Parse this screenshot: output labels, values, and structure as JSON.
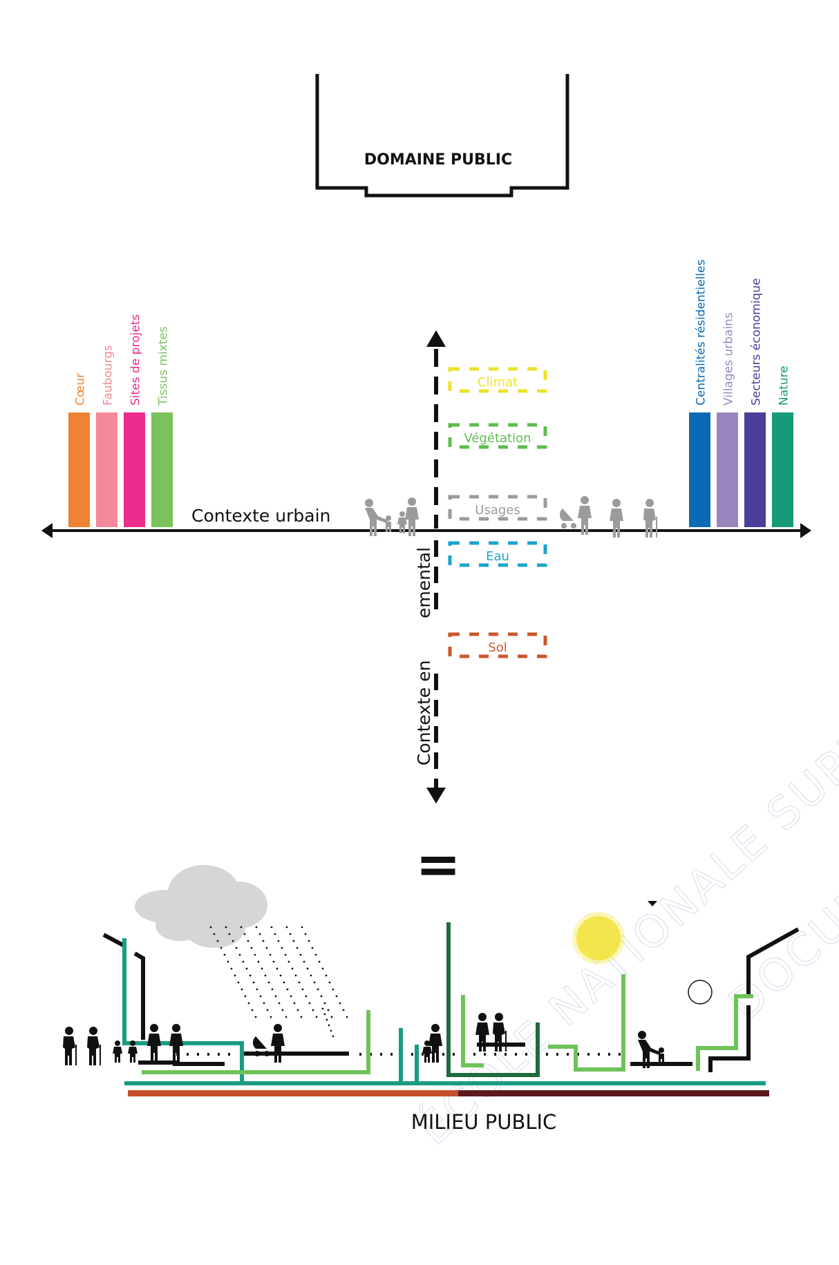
{
  "domaine_public": {
    "label": "DOMAINE PUBLIC"
  },
  "contexte_urbain": {
    "label": "Contexte urbain",
    "left_categories": [
      {
        "label": "Cœur",
        "color": "#EE8433"
      },
      {
        "label": "Faubourgs",
        "color": "#F4899C"
      },
      {
        "label": "Sites de projets",
        "color": "#EC2C8C"
      },
      {
        "label": "Tissus mixtes",
        "color": "#7AC25B"
      }
    ],
    "right_categories": [
      {
        "label": "Centralités résidentielles",
        "color": "#0A6AB4"
      },
      {
        "label": "Villages urbains",
        "color": "#9A86BF"
      },
      {
        "label": "Secteurs économique",
        "color": "#4A3E97"
      },
      {
        "label": "Nature",
        "color": "#159B78"
      }
    ]
  },
  "contexte_environnemental": {
    "label_top": "emental",
    "label_bottom": "Contexte en",
    "layers": [
      {
        "label": "Climat",
        "color": "#EDE228"
      },
      {
        "label": "Végétation",
        "color": "#5DBE4E"
      },
      {
        "label": "Usages",
        "color": "#9B9B9B"
      },
      {
        "label": "Eau",
        "color": "#1AA4CD"
      },
      {
        "label": "Sol",
        "color": "#C9572D"
      }
    ]
  },
  "equals": {
    "symbol": "="
  },
  "milieu_public": {
    "label": "MILIEU PUBLIC"
  },
  "watermark": {
    "line1": "ÉCOLE NATIONALE SUPÉRIEURE",
    "line2": "DOCUMENT"
  },
  "icons": [
    "person-icon",
    "stroller-icon",
    "elderly-icon",
    "cloud-icon",
    "sun-icon"
  ]
}
